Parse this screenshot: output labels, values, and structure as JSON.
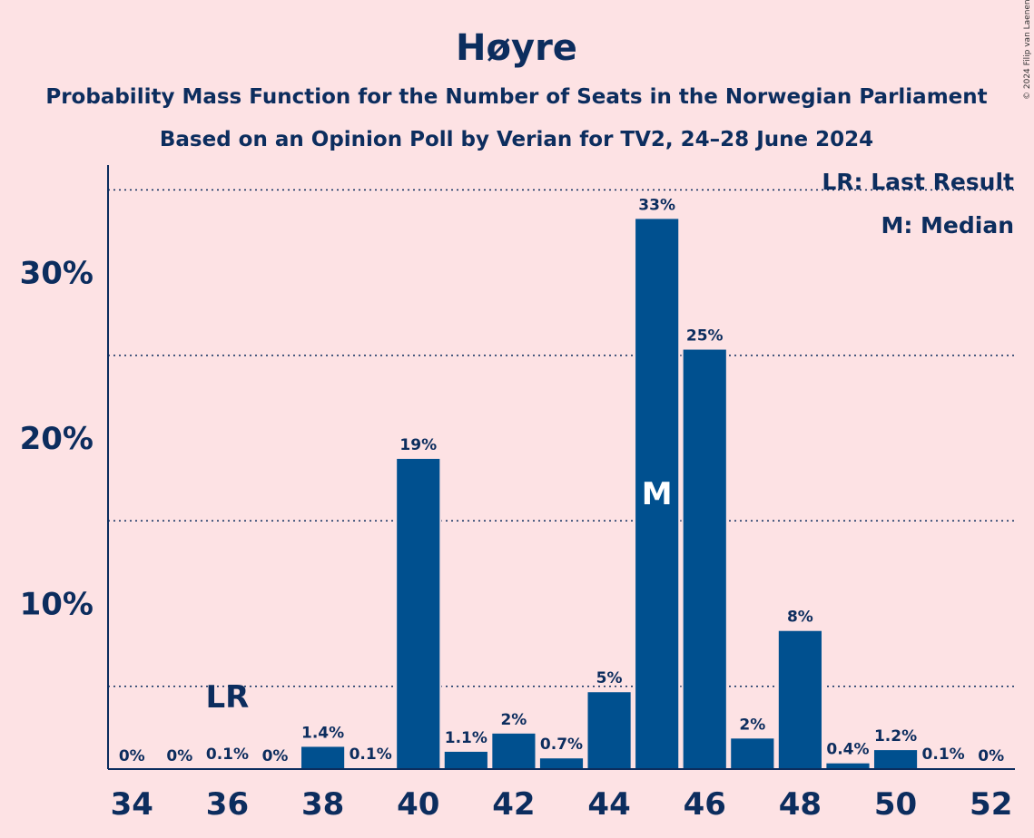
{
  "header": {
    "title": "Høyre",
    "subtitle1": "Probability Mass Function for the Number of Seats in the Norwegian Parliament",
    "subtitle2": "Based on an Opinion Poll by Verian for TV2, 24–28 June 2024"
  },
  "copyright": "© 2024 Filip van Laenen",
  "legend": {
    "lr": "LR: Last Result",
    "median": "M: Median"
  },
  "colors": {
    "background": "#fde2e4",
    "bar": "#00508f",
    "text": "#0c2d5e"
  },
  "chart_data": {
    "type": "bar",
    "categories": [
      34,
      35,
      36,
      37,
      38,
      39,
      40,
      41,
      42,
      43,
      44,
      45,
      46,
      47,
      48,
      49,
      50,
      51,
      52
    ],
    "values": [
      0,
      0,
      0.1,
      0,
      1.4,
      0.1,
      18.8,
      1.1,
      2.2,
      0.7,
      4.7,
      33.3,
      25.4,
      1.9,
      8.4,
      0.4,
      1.2,
      0.1,
      0
    ],
    "labels": [
      "0%",
      "0%",
      "0.1%",
      "0%",
      "1.4%",
      "0.1%",
      "19%",
      "1.1%",
      "2%",
      "0.7%",
      "5%",
      "33%",
      "25%",
      "2%",
      "8%",
      "0.4%",
      "1.2%",
      "0.1%",
      "0%"
    ],
    "x_ticks": [
      34,
      36,
      38,
      40,
      42,
      44,
      46,
      48,
      50,
      52
    ],
    "y_ticks": [
      10,
      20,
      30
    ],
    "y_tick_labels": [
      "10%",
      "20%",
      "30%"
    ],
    "ylim": [
      0,
      36.5
    ],
    "last_result_seat": 36,
    "last_result_label": "LR",
    "median_seat": 45,
    "median_label": "M",
    "legend_position": "top-right"
  }
}
